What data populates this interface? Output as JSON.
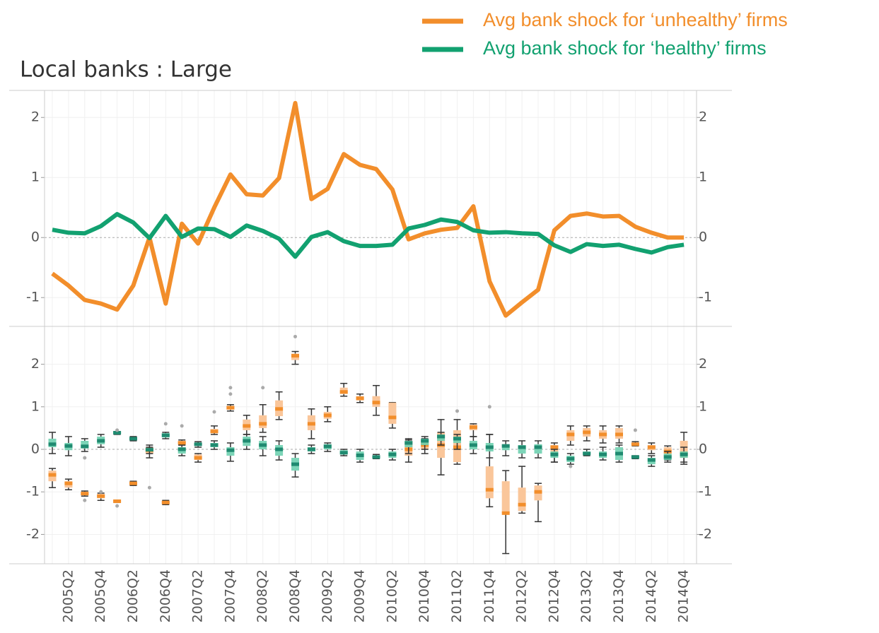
{
  "chart_data": [
    {
      "type": "line",
      "title": "Local banks : Large",
      "ylim": [
        -1.48,
        2.45
      ],
      "yticks": [
        -1,
        0,
        1,
        2
      ],
      "grid": true,
      "series": [
        {
          "name": "Avg bank shock for ‘unhealthy’ firms",
          "color": "#f28e2b",
          "values": [
            -0.6,
            -0.8,
            -1.04,
            -1.1,
            -1.2,
            -0.8,
            0,
            -1.1,
            0.23,
            -0.1,
            0.5,
            1.05,
            0.72,
            0.7,
            0.99,
            2.24,
            0.64,
            0.81,
            1.39,
            1.21,
            1.14,
            0.8,
            -0.03,
            0.07,
            0.13,
            0.16,
            0.52,
            -0.73,
            -1.3,
            -1.08,
            -0.87,
            0.12,
            0.36,
            0.4,
            0.35,
            0.36,
            0.18,
            0.08,
            0,
            0
          ]
        },
        {
          "name": "Avg bank shock for ‘healthy’ firms",
          "color": "#12a170",
          "values": [
            0.13,
            0.08,
            0.07,
            0.19,
            0.39,
            0.25,
            -0.01,
            0.36,
            0.01,
            0.15,
            0.14,
            0.01,
            0.2,
            0.11,
            -0.02,
            -0.32,
            0.01,
            0.09,
            -0.06,
            -0.14,
            -0.14,
            -0.12,
            0.15,
            0.21,
            0.3,
            0.26,
            0.12,
            0.08,
            0.09,
            0.07,
            0.06,
            -0.13,
            -0.24,
            -0.11,
            -0.14,
            -0.12,
            -0.19,
            -0.25,
            -0.16,
            -0.12
          ]
        }
      ]
    },
    {
      "type": "box",
      "categories": [
        null,
        "2005Q2",
        null,
        "2005Q4",
        null,
        "2006Q2",
        null,
        "2006Q4",
        null,
        "2007Q2",
        null,
        "2007Q4",
        null,
        "2008Q2",
        null,
        "2008Q4",
        null,
        "2009Q2",
        null,
        "2009Q4",
        null,
        "2010Q2",
        null,
        "2010Q4",
        null,
        "2011Q2",
        null,
        "2011Q4",
        null,
        "2012Q2",
        null,
        "2012Q4",
        null,
        "2013Q2",
        null,
        "2013Q4",
        null,
        "2014Q2",
        null,
        "2014Q4"
      ],
      "ylim": [
        -2.69,
        2.89
      ],
      "yticks": [
        -2,
        -1,
        0,
        1,
        2
      ],
      "grid": true,
      "series": [
        {
          "color": "#f28e2b",
          "fill": "#f9c08f",
          "boxes": [
            [
              -0.9,
              -0.75,
              -0.6,
              -0.5,
              -0.45
            ],
            [
              -0.95,
              -0.9,
              -0.8,
              -0.75,
              -0.7
            ],
            [
              -1.1,
              -1.08,
              -1.04,
              -1.0,
              -0.98
            ],
            [
              -1.2,
              -1.15,
              -1.1,
              -1.05,
              -1.03
            ],
            [
              -1.25,
              -1.23,
              -1.22,
              -1.21,
              -1.2
            ],
            [
              -0.85,
              -0.82,
              -0.8,
              -0.77,
              -0.75
            ],
            [
              -0.2,
              -0.1,
              -0.02,
              0.05,
              0.1
            ],
            [
              -1.3,
              -1.28,
              -1.25,
              -1.22,
              -1.2
            ],
            [
              0.1,
              0.12,
              0.15,
              0.2,
              0.22
            ],
            [
              -0.3,
              -0.25,
              -0.2,
              -0.12,
              -0.1
            ],
            [
              0.35,
              0.38,
              0.42,
              0.48,
              0.55
            ],
            [
              0.9,
              0.93,
              0.98,
              1.02,
              1.05
            ],
            [
              0.35,
              0.45,
              0.55,
              0.7,
              0.8
            ],
            [
              0.4,
              0.5,
              0.6,
              0.8,
              1.05
            ],
            [
              0.7,
              0.78,
              0.95,
              1.15,
              1.35
            ],
            [
              2.0,
              2.1,
              2.2,
              2.25,
              2.3
            ],
            [
              0.25,
              0.45,
              0.6,
              0.8,
              0.95
            ],
            [
              0.65,
              0.72,
              0.8,
              0.88,
              1.0
            ],
            [
              1.25,
              1.3,
              1.35,
              1.45,
              1.55
            ],
            [
              1.1,
              1.15,
              1.2,
              1.25,
              1.3
            ],
            [
              0.8,
              1.0,
              1.1,
              1.25,
              1.5
            ],
            [
              0.5,
              0.6,
              0.75,
              1.1,
              1.1
            ],
            [
              -0.3,
              -0.15,
              0.0,
              0.2,
              0.22
            ],
            [
              -0.1,
              0.0,
              0.1,
              0.2,
              0.25
            ],
            [
              -0.6,
              -0.2,
              0.1,
              0.4,
              0.7
            ],
            [
              -0.35,
              -0.3,
              0.05,
              0.45,
              0.7
            ],
            [
              0.3,
              0.45,
              0.52,
              0.58,
              0.6
            ],
            [
              -1.35,
              -1.15,
              -0.95,
              -0.4,
              0.35
            ],
            [
              -2.45,
              -1.5,
              -1.5,
              -0.75,
              -0.5
            ],
            [
              -1.5,
              -1.45,
              -1.3,
              -0.9,
              -0.4
            ],
            [
              -1.7,
              -1.2,
              -1.0,
              -0.85,
              -0.8
            ],
            [
              -0.3,
              -0.1,
              0.05,
              0.1,
              0.15
            ],
            [
              0.1,
              0.2,
              0.35,
              0.45,
              0.55
            ],
            [
              0.2,
              0.3,
              0.4,
              0.5,
              0.55
            ],
            [
              0.15,
              0.25,
              0.35,
              0.45,
              0.55
            ],
            [
              0.15,
              0.25,
              0.35,
              0.5,
              0.55
            ],
            [
              0.08,
              0.1,
              0.12,
              0.15,
              0.18
            ],
            [
              -0.1,
              -0.02,
              0.05,
              0.1,
              0.15
            ],
            [
              -0.25,
              -0.15,
              -0.05,
              0.05,
              0.08
            ],
            [
              -0.35,
              -0.2,
              -0.1,
              0.2,
              0.4
            ]
          ],
          "outliers": [
            [
              10,
              0.88
            ],
            [
              11,
              1.45
            ],
            [
              11,
              1.3
            ],
            [
              13,
              1.45
            ],
            [
              15,
              2.65
            ],
            [
              8,
              0.55
            ],
            [
              7,
              0.6
            ],
            [
              6,
              -0.9
            ],
            [
              4,
              -1.33
            ],
            [
              2,
              -1.2
            ],
            [
              3,
              -1.0
            ],
            [
              25,
              0.9
            ],
            [
              27,
              1.0
            ],
            [
              36,
              0.45
            ]
          ]
        },
        {
          "color": "#1f8a70",
          "fill": "#6fd0b0",
          "boxes": [
            [
              -0.1,
              0.05,
              0.12,
              0.25,
              0.4
            ],
            [
              -0.15,
              -0.02,
              0.08,
              0.15,
              0.3
            ],
            [
              -0.05,
              0.02,
              0.07,
              0.2,
              0.25
            ],
            [
              0.05,
              0.12,
              0.2,
              0.3,
              0.35
            ],
            [
              0.35,
              0.37,
              0.39,
              0.41,
              0.42
            ],
            [
              0.2,
              0.22,
              0.25,
              0.28,
              0.3
            ],
            [
              -0.1,
              -0.05,
              -0.01,
              0.02,
              0.05
            ],
            [
              0.25,
              0.28,
              0.33,
              0.38,
              0.4
            ],
            [
              -0.15,
              -0.1,
              0.0,
              0.05,
              0.1
            ],
            [
              0.05,
              0.08,
              0.12,
              0.15,
              0.18
            ],
            [
              0.0,
              0.05,
              0.1,
              0.15,
              0.2
            ],
            [
              -0.28,
              -0.15,
              -0.02,
              0.05,
              0.15
            ],
            [
              0.0,
              0.08,
              0.2,
              0.3,
              0.35
            ],
            [
              -0.15,
              0.0,
              0.1,
              0.2,
              0.3
            ],
            [
              -0.25,
              -0.15,
              0.0,
              0.1,
              0.2
            ],
            [
              -0.65,
              -0.5,
              -0.35,
              -0.2,
              -0.1
            ],
            [
              -0.1,
              -0.05,
              0.0,
              0.05,
              0.1
            ],
            [
              -0.05,
              0.0,
              0.07,
              0.12,
              0.15
            ],
            [
              -0.15,
              -0.12,
              -0.08,
              -0.02,
              0.0
            ],
            [
              -0.3,
              -0.25,
              -0.14,
              -0.05,
              0.0
            ],
            [
              -0.22,
              -0.2,
              -0.18,
              -0.15,
              -0.12
            ],
            [
              -0.25,
              -0.2,
              -0.12,
              -0.05,
              0.0
            ],
            [
              -0.1,
              0.05,
              0.15,
              0.2,
              0.25
            ],
            [
              0.0,
              0.1,
              0.2,
              0.25,
              0.3
            ],
            [
              0.1,
              0.2,
              0.3,
              0.35,
              0.4
            ],
            [
              0.0,
              0.15,
              0.25,
              0.3,
              0.35
            ],
            [
              -0.1,
              0.0,
              0.1,
              0.2,
              0.3
            ],
            [
              -0.2,
              -0.05,
              0.05,
              0.15,
              0.35
            ],
            [
              -0.15,
              -0.02,
              0.08,
              0.12,
              0.2
            ],
            [
              -0.2,
              -0.1,
              0.05,
              0.1,
              0.2
            ],
            [
              -0.2,
              -0.1,
              0.05,
              0.12,
              0.2
            ],
            [
              -0.3,
              -0.2,
              -0.12,
              -0.05,
              0.0
            ],
            [
              -0.35,
              -0.3,
              -0.22,
              -0.15,
              -0.1
            ],
            [
              -0.15,
              -0.12,
              -0.1,
              -0.05,
              0.0
            ],
            [
              -0.25,
              -0.2,
              -0.12,
              -0.05,
              0.05
            ],
            [
              -0.3,
              -0.25,
              -0.1,
              0.05,
              0.1
            ],
            [
              -0.22,
              -0.2,
              -0.18,
              -0.16,
              -0.15
            ],
            [
              -0.4,
              -0.35,
              -0.25,
              -0.2,
              -0.15
            ],
            [
              -0.3,
              -0.25,
              -0.18,
              -0.1,
              -0.05
            ],
            [
              -0.3,
              -0.2,
              -0.12,
              -0.05,
              0.05
            ]
          ],
          "outliers": [
            [
              2,
              -0.2
            ],
            [
              4,
              0.45
            ],
            [
              32,
              -0.4
            ]
          ]
        }
      ]
    }
  ]
}
